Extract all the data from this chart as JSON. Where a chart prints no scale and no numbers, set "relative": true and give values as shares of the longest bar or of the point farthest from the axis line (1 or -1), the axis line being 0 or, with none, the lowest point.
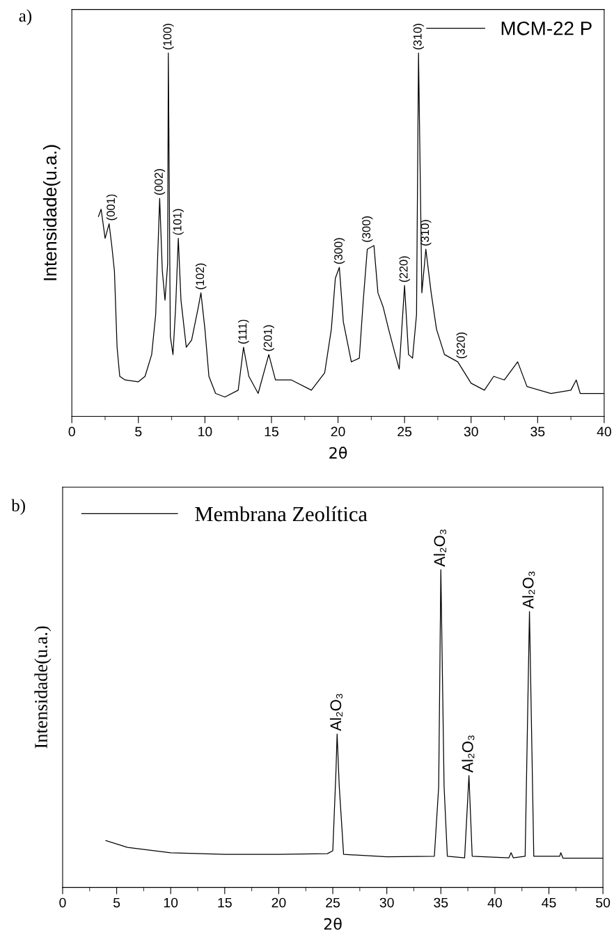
{
  "chart_data": [
    {
      "type": "line",
      "title": "a)",
      "xlabel": "2θ",
      "ylabel": "Intensidade(u.a.)",
      "relative": true,
      "xlim": [
        0,
        40
      ],
      "xticks": [
        0,
        5,
        10,
        15,
        20,
        25,
        30,
        35,
        40
      ],
      "tick_labels": "x",
      "legend": "top right",
      "series": [
        {
          "name": "MCM-22 P",
          "color": "#000000",
          "x": [
            2.0,
            2.2,
            2.5,
            2.8,
            3.0,
            3.2,
            3.4,
            3.6,
            4.0,
            5.0,
            5.5,
            6.0,
            6.3,
            6.6,
            6.8,
            7.0,
            7.2,
            7.25,
            7.4,
            7.6,
            7.8,
            8.0,
            8.2,
            8.6,
            9.0,
            9.5,
            9.7,
            10.0,
            10.3,
            10.8,
            11.5,
            12.5,
            12.9,
            13.3,
            14.0,
            14.8,
            15.3,
            16.5,
            18.0,
            19.0,
            19.5,
            19.8,
            20.1,
            20.4,
            21.0,
            21.6,
            21.9,
            22.2,
            22.7,
            23.0,
            23.4,
            23.8,
            24.3,
            24.6,
            25.0,
            25.3,
            25.6,
            25.9,
            26.05,
            26.3,
            26.6,
            27.0,
            27.4,
            28.0,
            29.0,
            30.0,
            31.0,
            31.7,
            32.5,
            33.5,
            34.2,
            36.0,
            37.5,
            37.9,
            38.2,
            40.0
          ],
          "values": [
            0.55,
            0.57,
            0.49,
            0.53,
            0.47,
            0.4,
            0.19,
            0.11,
            0.1,
            0.095,
            0.11,
            0.17,
            0.28,
            0.6,
            0.4,
            0.32,
            0.42,
            1.0,
            0.22,
            0.17,
            0.3,
            0.49,
            0.32,
            0.19,
            0.21,
            0.3,
            0.34,
            0.24,
            0.11,
            0.063,
            0.053,
            0.072,
            0.19,
            0.11,
            0.063,
            0.17,
            0.1,
            0.1,
            0.072,
            0.12,
            0.24,
            0.38,
            0.41,
            0.26,
            0.15,
            0.16,
            0.32,
            0.46,
            0.47,
            0.34,
            0.3,
            0.24,
            0.17,
            0.13,
            0.36,
            0.17,
            0.16,
            0.28,
            1.0,
            0.34,
            0.46,
            0.34,
            0.24,
            0.17,
            0.15,
            0.091,
            0.072,
            0.11,
            0.1,
            0.15,
            0.082,
            0.063,
            0.072,
            0.1,
            0.063,
            0.063
          ]
        }
      ],
      "annotations": [
        {
          "text": "(001)",
          "x": 3.0,
          "y": 0.53
        },
        {
          "text": "(002)",
          "x": 6.6,
          "y": 0.6
        },
        {
          "text": "(100)",
          "x": 7.25,
          "y": 1.0
        },
        {
          "text": "(101)",
          "x": 8.0,
          "y": 0.49
        },
        {
          "text": "(102)",
          "x": 9.7,
          "y": 0.34
        },
        {
          "text": "(111)",
          "x": 12.9,
          "y": 0.19
        },
        {
          "text": "(201)",
          "x": 14.8,
          "y": 0.17
        },
        {
          "text": "(300)",
          "x": 20.1,
          "y": 0.41
        },
        {
          "text": "(300)",
          "x": 22.2,
          "y": 0.47
        },
        {
          "text": "(220)",
          "x": 25.0,
          "y": 0.36
        },
        {
          "text": "(310)",
          "x": 26.05,
          "y": 1.0
        },
        {
          "text": "(310)",
          "x": 26.6,
          "y": 0.46
        },
        {
          "text": "(320)",
          "x": 29.3,
          "y": 0.15
        }
      ]
    },
    {
      "type": "line",
      "title": "b)",
      "xlabel": "2θ",
      "ylabel": "Intensidade(u.a.)",
      "relative": true,
      "xlim": [
        0,
        50
      ],
      "xticks": [
        0,
        5,
        10,
        15,
        20,
        25,
        30,
        35,
        40,
        45,
        50
      ],
      "tick_labels": "x",
      "legend": "top left",
      "series": [
        {
          "name": "Membrana Zeolítica",
          "color": "#000000",
          "x": [
            4.0,
            6.0,
            10.0,
            15.0,
            20.0,
            24.5,
            25.0,
            25.3,
            25.4,
            25.6,
            26.0,
            30.0,
            34.4,
            34.8,
            35.0,
            35.3,
            35.6,
            37.2,
            37.6,
            37.9,
            41.3,
            41.5,
            41.7,
            42.8,
            43.2,
            43.6,
            46.0,
            46.1,
            46.3,
            50.0
          ],
          "values": [
            0.147,
            0.126,
            0.109,
            0.104,
            0.104,
            0.106,
            0.115,
            0.371,
            0.483,
            0.317,
            0.104,
            0.096,
            0.098,
            0.317,
            1.0,
            0.317,
            0.098,
            0.093,
            0.352,
            0.098,
            0.093,
            0.109,
            0.093,
            0.098,
            0.868,
            0.098,
            0.098,
            0.109,
            0.092,
            0.092
          ]
        }
      ],
      "annotations": [
        {
          "text": "Al₂O₃",
          "x": 25.4,
          "y": 0.483
        },
        {
          "text": "Al₂O₃",
          "x": 35.0,
          "y": 1.0
        },
        {
          "text": "Al₂O₃",
          "x": 37.6,
          "y": 0.352
        },
        {
          "text": "Al₂O₃",
          "x": 43.2,
          "y": 0.868
        }
      ]
    }
  ]
}
